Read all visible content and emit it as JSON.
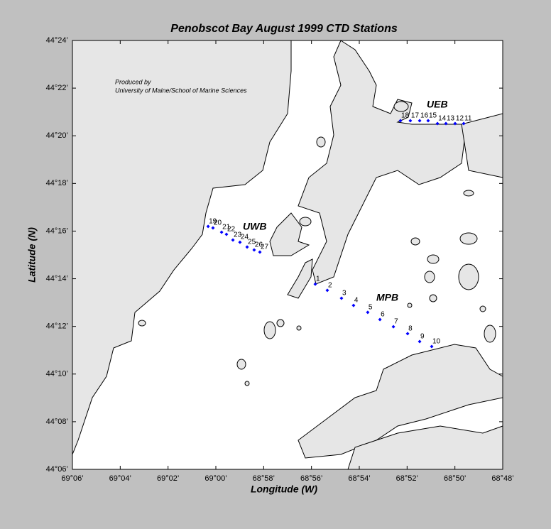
{
  "chart_data": {
    "type": "scatter",
    "title": "Penobscot Bay  August 1999  CTD Stations",
    "x_label": "Longitude (W)",
    "y_label": "Latitude (N)",
    "annotations": [
      "Produced by",
      "University of Maine/School of Marine Sciences",
      "UWB",
      "MPB",
      "UEB"
    ],
    "xlim": [
      -69.1,
      -68.8
    ],
    "ylim": [
      44.1,
      44.4
    ],
    "xticks": [
      {
        "value": -69.1,
        "label": "69°06’"
      },
      {
        "value": -69.06667,
        "label": "69°04’"
      },
      {
        "value": -69.03333,
        "label": "69°02’"
      },
      {
        "value": -69.0,
        "label": "69°00’"
      },
      {
        "value": -68.96667,
        "label": "68°58’"
      },
      {
        "value": -68.93333,
        "label": "68°56’"
      },
      {
        "value": -68.9,
        "label": "68°54’"
      },
      {
        "value": -68.86667,
        "label": "68°52’"
      },
      {
        "value": -68.83333,
        "label": "68°50’"
      },
      {
        "value": -68.8,
        "label": "68°48’"
      }
    ],
    "yticks": [
      {
        "value": 44.1,
        "label": "44°06’"
      },
      {
        "value": 44.13333,
        "label": "44°08’"
      },
      {
        "value": 44.16667,
        "label": "44°10’"
      },
      {
        "value": 44.2,
        "label": "44°12’"
      },
      {
        "value": 44.23333,
        "label": "44°14’"
      },
      {
        "value": 44.26667,
        "label": "44°16’"
      },
      {
        "value": 44.3,
        "label": "44°18’"
      },
      {
        "value": 44.33333,
        "label": "44°20’"
      },
      {
        "value": 44.36667,
        "label": "44°22’"
      },
      {
        "value": 44.4,
        "label": "44°24’"
      }
    ],
    "grid": false,
    "series": [
      {
        "color": "#0000ff",
        "point_labels": [
          "1",
          "2",
          "3",
          "4",
          "5",
          "6",
          "7",
          "8",
          "9",
          "10",
          "11",
          "12",
          "13",
          "14",
          "15",
          "16",
          "17",
          "18",
          "19",
          "20",
          "21",
          "22",
          "23",
          "24",
          "25",
          "26",
          "27"
        ],
        "x": [
          -68.9307,
          -68.9223,
          -68.9124,
          -68.904,
          -68.8941,
          -68.8856,
          -68.8762,
          -68.8663,
          -68.8579,
          -68.8495,
          -68.8272,
          -68.8332,
          -68.8396,
          -68.8455,
          -68.852,
          -68.8579,
          -68.8644,
          -68.8713,
          -69.0054,
          -69.002,
          -68.996,
          -68.9926,
          -68.9881,
          -68.9832,
          -68.9782,
          -68.9733,
          -68.9693
        ],
        "values": [
          44.2296,
          44.2252,
          44.2197,
          44.2147,
          44.2098,
          44.2048,
          44.1998,
          44.1949,
          44.1894,
          44.1859,
          44.3419,
          44.3419,
          44.3419,
          44.3419,
          44.3439,
          44.3439,
          44.3439,
          44.3439,
          44.2699,
          44.2689,
          44.2659,
          44.2644,
          44.2604,
          44.2589,
          44.2555,
          44.2535,
          44.252
        ]
      }
    ]
  }
}
